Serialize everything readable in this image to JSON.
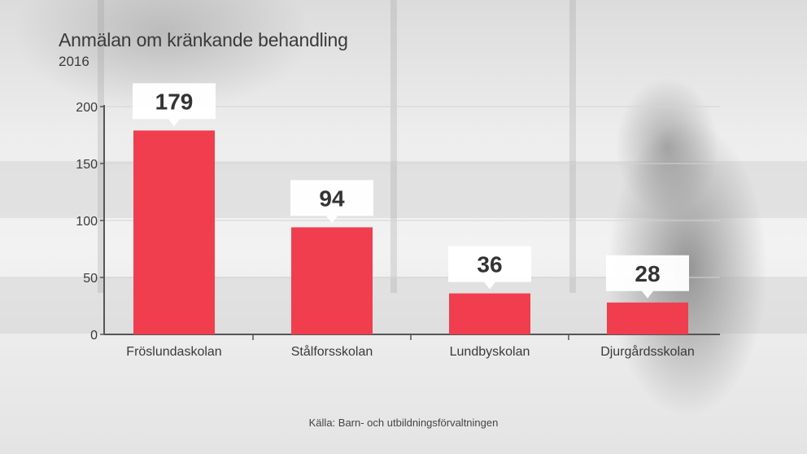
{
  "title": "Anmälan om kränkande behandling",
  "subtitle": "2016",
  "source": "Källa: Barn- och utbildningsförvaltningen",
  "colors": {
    "bar": "#f03e4e",
    "axis": "#555555",
    "text": "#3a3a3a",
    "label_box": "#ffffff"
  },
  "chart_data": {
    "type": "bar",
    "title": "Anmälan om kränkande behandling",
    "subtitle": "2016",
    "categories": [
      "Fröslundaskolan",
      "Stålforsskolan",
      "Lundbyskolan",
      "Djurgårdsskolan"
    ],
    "values": [
      179,
      94,
      36,
      28
    ],
    "data_labels": [
      "179",
      "94",
      "36",
      "28"
    ],
    "ylim": [
      0,
      200
    ],
    "yticks": [
      0,
      50,
      100,
      150,
      200
    ],
    "ytick_labels": [
      "0",
      "50",
      "100",
      "150",
      "200"
    ],
    "grid": true,
    "legend": "none"
  }
}
